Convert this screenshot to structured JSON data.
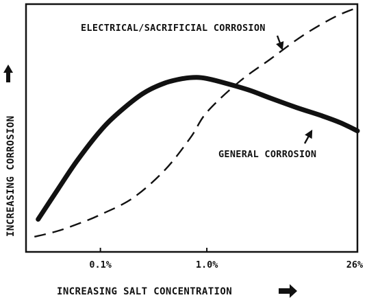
{
  "chart_data": {
    "type": "line",
    "title": "",
    "xlabel": "INCREASING SALT CONCENTRATION",
    "ylabel": "INCREASING CORROSION",
    "x_scale": "log",
    "xlim": [
      0.02,
      26
    ],
    "ylim": [
      0,
      100
    ],
    "ticks": [
      {
        "value": 0.1,
        "label": "0.1%"
      },
      {
        "value": 1.0,
        "label": "1.0%"
      },
      {
        "value": 26,
        "label": "26%"
      }
    ],
    "grid": false,
    "series": [
      {
        "name": "GENERAL CORROSION",
        "style": "solid-thick",
        "x": [
          0.026,
          0.04,
          0.06,
          0.1,
          0.15,
          0.25,
          0.4,
          0.6,
          0.8,
          1.0,
          1.5,
          2.5,
          4,
          7,
          12,
          18,
          26
        ],
        "y": [
          9,
          22,
          34,
          47,
          55,
          63,
          67.5,
          69.5,
          70,
          69.5,
          67.5,
          64.5,
          61,
          57,
          53.5,
          50.5,
          47
        ]
      },
      {
        "name": "ELECTRICAL/SACRIFICIAL CORROSION",
        "style": "dashed",
        "x": [
          0.024,
          0.04,
          0.07,
          0.1,
          0.2,
          0.4,
          0.7,
          1.0,
          2,
          4,
          8,
          16,
          26
        ],
        "y": [
          1.5,
          4,
          8,
          11,
          18,
          30,
          44,
          55,
          68,
          78,
          88,
          96,
          100
        ]
      }
    ],
    "annotations": [
      {
        "text": "ELECTRICAL/SACRIFICIAL CORROSION",
        "target_series": "ELECTRICAL/SACRIFICIAL CORROSION"
      },
      {
        "text": "GENERAL CORROSION",
        "target_series": "GENERAL CORROSION"
      }
    ],
    "colors": {
      "ink": "#111111",
      "background": "#ffffff"
    },
    "arrow_icons": {
      "y_axis": "up-arrow-icon",
      "x_axis": "right-arrow-icon"
    }
  }
}
